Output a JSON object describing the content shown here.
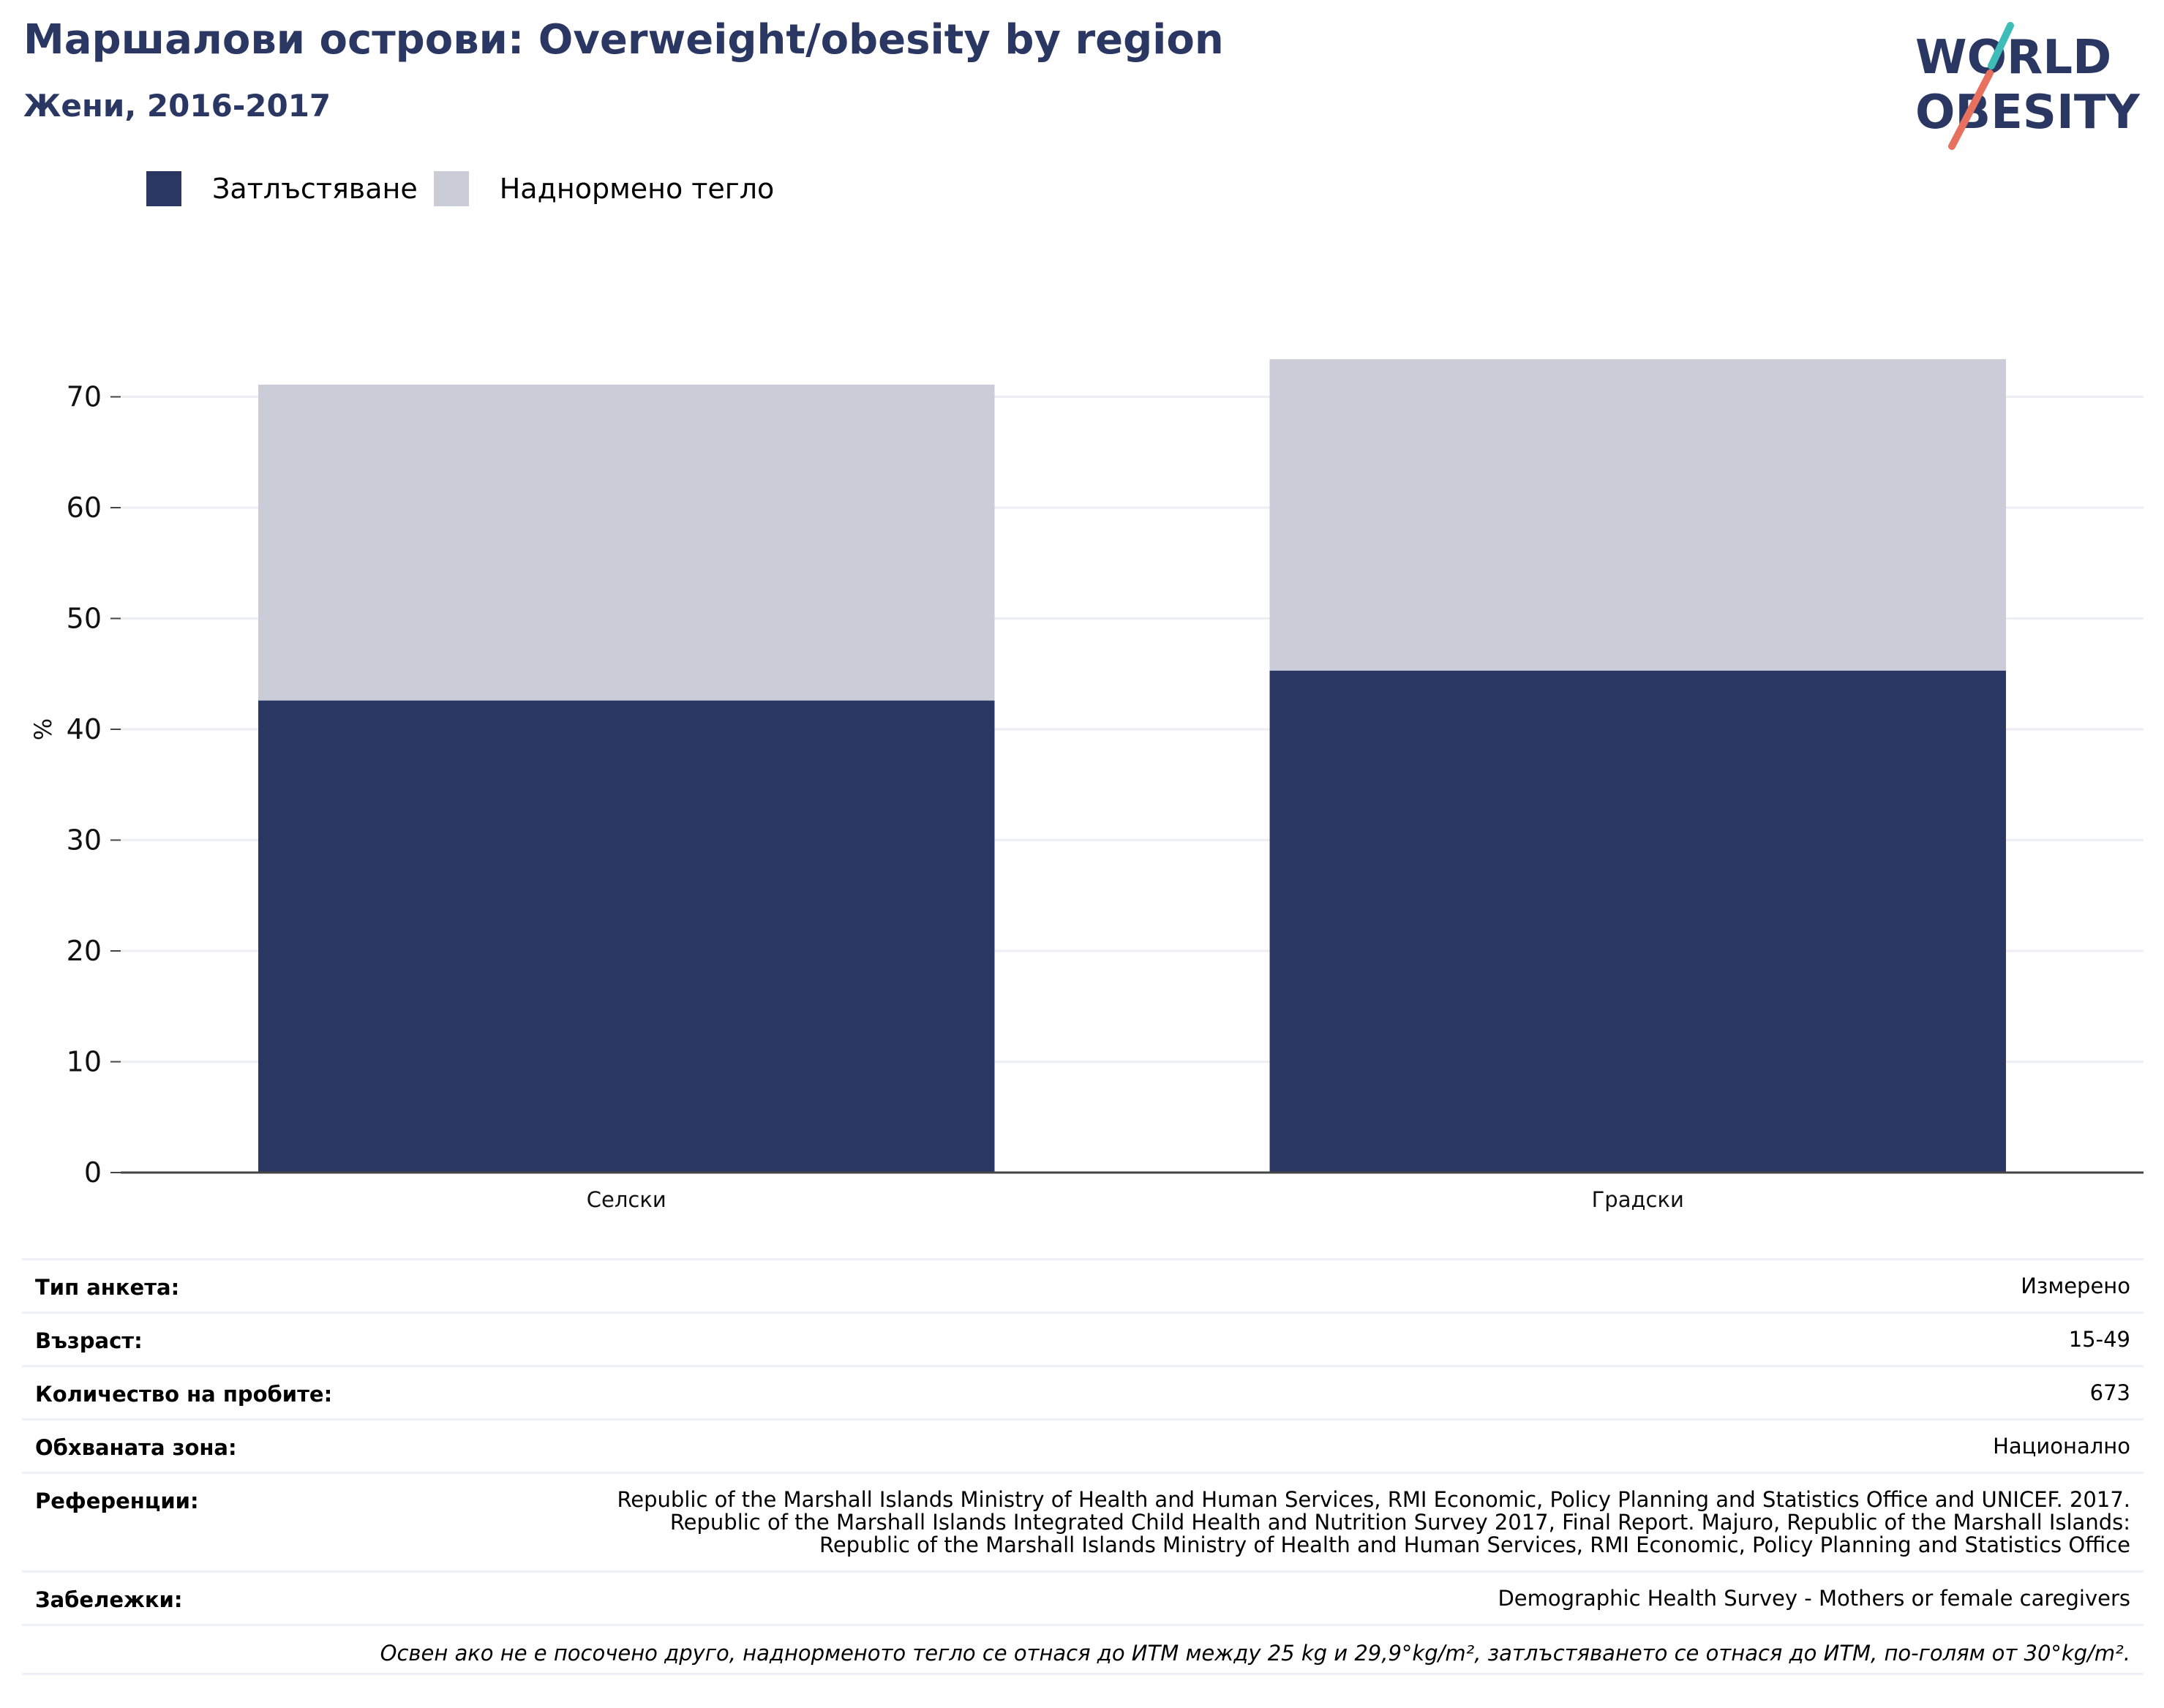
{
  "header": {
    "title": "Маршалови острови: Overweight/obesity by region",
    "subtitle": "Жени, 2016-2017"
  },
  "logo": {
    "line1": "WORLD",
    "line2": "OBESITY"
  },
  "colors": {
    "obesity": "#2b3763",
    "overweight": "#cacdd8",
    "title": "#2b3763"
  },
  "chart_data": {
    "type": "bar",
    "stacked": true,
    "categories": [
      "Селски",
      "Градски"
    ],
    "series": [
      {
        "name": "Затлъстяване",
        "values": [
          42.6,
          45.3
        ]
      },
      {
        "name": "Наднормено тегло",
        "values": [
          28.5,
          28.1
        ]
      }
    ],
    "ylabel": "%",
    "xlabel": "",
    "ylim": [
      0,
      80
    ],
    "yticks": [
      0,
      10,
      20,
      30,
      40,
      50,
      60,
      70
    ],
    "grid": true,
    "legend_position": "top-left"
  },
  "info": {
    "survey_type": {
      "label": "Тип анкета:",
      "value": "Измерено"
    },
    "age": {
      "label": "Възраст:",
      "value": "15-49"
    },
    "sample_size": {
      "label": "Количество на пробите:",
      "value": "673"
    },
    "area_covered": {
      "label": "Обхваната зона:",
      "value": "Национално"
    },
    "references": {
      "label": "Референции:",
      "value": "Republic of the Marshall Islands Ministry of Health and Human Services, RMI Economic, Policy Planning and Statistics Office and UNICEF. 2017. Republic of the Marshall Islands Integrated Child Health and Nutrition Survey 2017, Final Report. Majuro, Republic of the Marshall Islands: Republic of the Marshall Islands Ministry of Health and Human Services, RMI Economic, Policy Planning and Statistics Office"
    },
    "notes": {
      "label": "Забележки:",
      "value": "Demographic Health Survey - Mothers or female caregivers"
    },
    "footnote": "Освен ако не е посочено друго, наднорменото тегло се отнася до ИТМ между 25 kg и 29,9°kg/m², затлъстяването се отнася до ИТМ, по-голям от 30°kg/m²."
  }
}
